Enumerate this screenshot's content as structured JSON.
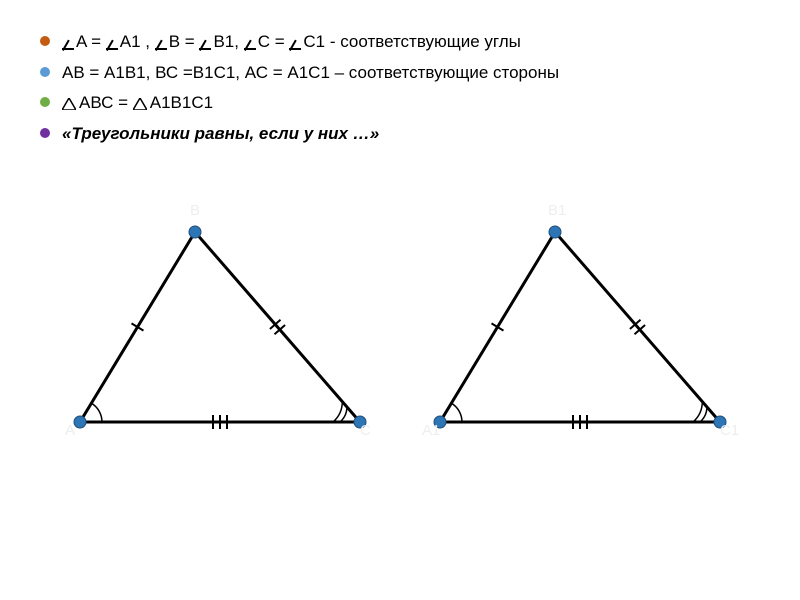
{
  "bullets": {
    "b1": {
      "color": "#c55a11",
      "text_parts": [
        "A = ",
        "A1 , ",
        "B = ",
        "B1, ",
        "C  =  ",
        "C1  - соответствующие углы"
      ]
    },
    "b2": {
      "color": "#5b9bd5",
      "text": "АВ = А1В1,  ВС =В1С1,  АС = А1С1 – соответствующие стороны"
    },
    "b3": {
      "color": "#70ad47",
      "text_parts": [
        "АВС  =  ",
        "А1В1С1"
      ]
    },
    "b4": {
      "color": "#7030a0",
      "text": "«Треугольники равны, если у них …»"
    }
  },
  "diagram": {
    "vertex_color": "#2e75b6",
    "vertex_radius": 6,
    "line_color": "#000000",
    "line_width": 3,
    "tick_color": "#000000",
    "arc_color": "#000000",
    "triangles": [
      {
        "labels": {
          "A": "A",
          "B": "B",
          "C": "C"
        },
        "points": {
          "A": [
            20,
            210
          ],
          "B": [
            135,
            20
          ],
          "C": [
            300,
            210
          ]
        }
      },
      {
        "labels": {
          "A": "A1",
          "B": "B1",
          "C": "C1"
        },
        "points": {
          "A": [
            20,
            210
          ],
          "B": [
            135,
            20
          ],
          "C": [
            300,
            210
          ]
        }
      }
    ]
  }
}
